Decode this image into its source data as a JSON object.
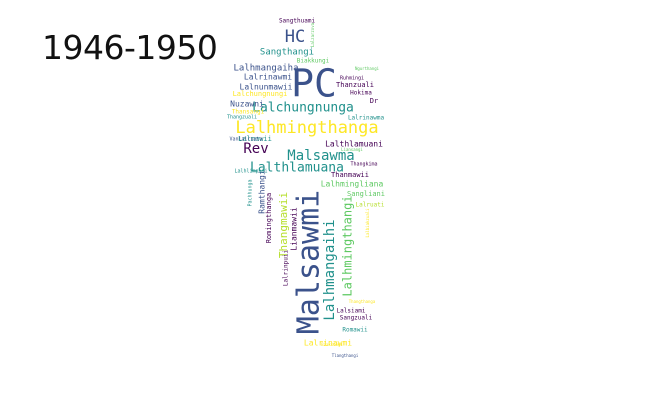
{
  "title": "1946-1950",
  "palette": {
    "dark_purple": "#440154",
    "indigo": "#3b528b",
    "teal": "#21918c",
    "green": "#5ec962",
    "yellow_green": "#b5de2b",
    "yellow": "#fde725"
  },
  "words": [
    {
      "text": "Malsawmi",
      "color": "#3b528b"
    },
    {
      "text": "PC",
      "color": "#3b528b"
    },
    {
      "text": "Lalhmingthanga",
      "color": "#fde725"
    },
    {
      "text": "Lalchungnunga",
      "color": "#21918c"
    },
    {
      "text": "Malsawma",
      "color": "#21918c"
    },
    {
      "text": "Lalthlamuana",
      "color": "#21918c"
    },
    {
      "text": "Lalhmangaihi",
      "color": "#21918c"
    },
    {
      "text": "Lalhmingthangi",
      "color": "#5ec962"
    },
    {
      "text": "HC",
      "color": "#3b528b"
    },
    {
      "text": "Rev",
      "color": "#440154"
    },
    {
      "text": "Thangmawii",
      "color": "#b5de2b"
    },
    {
      "text": "Sangthangi",
      "color": "#21918c"
    },
    {
      "text": "Lalhmangaiha",
      "color": "#3b528b"
    },
    {
      "text": "Lalrinawmi",
      "color": "#3b528b"
    },
    {
      "text": "Lalnunmawii",
      "color": "#3b528b"
    },
    {
      "text": "Lalhmingliana",
      "color": "#5ec962"
    },
    {
      "text": "Nuzawni",
      "color": "#3b528b"
    },
    {
      "text": "Lalthlamuani",
      "color": "#440154"
    },
    {
      "text": "Thanzuali",
      "color": "#440154"
    },
    {
      "text": "Hokima",
      "color": "#440154"
    },
    {
      "text": "Thanmawii",
      "color": "#440154"
    },
    {
      "text": "Sangliani",
      "color": "#5ec962"
    },
    {
      "text": "Lianmawii",
      "color": "#440154"
    },
    {
      "text": "Ramthangi",
      "color": "#3b528b"
    },
    {
      "text": "Romingthanga",
      "color": "#440154"
    },
    {
      "text": "Lalrinawmi",
      "color": "#fde725"
    },
    {
      "text": "Lalsiami",
      "color": "#440154"
    },
    {
      "text": "Sangzuali",
      "color": "#440154"
    },
    {
      "text": "Romawii",
      "color": "#21918c"
    },
    {
      "text": "Lalrinpuii",
      "color": "#440154"
    },
    {
      "text": "Lalmawii",
      "color": "#21918c"
    },
    {
      "text": "Thangkima",
      "color": "#440154"
    },
    {
      "text": "Sangthuami",
      "color": "#440154"
    },
    {
      "text": "Biakkungi",
      "color": "#5ec962"
    },
    {
      "text": "Lalrinawma",
      "color": "#21918c"
    },
    {
      "text": "Dr",
      "color": "#440154"
    },
    {
      "text": "Lalruati",
      "color": "#b5de2b"
    },
    {
      "text": "Thansangi",
      "color": "#fde725"
    },
    {
      "text": "Vanlalruata",
      "color": "#3b528b"
    },
    {
      "text": "Lalchungnungi",
      "color": "#fde725"
    },
    {
      "text": "Ruhmingi",
      "color": "#440154"
    },
    {
      "text": "Pachhunga",
      "color": "#21918c"
    },
    {
      "text": "Lalbiakzuali",
      "color": "#fde725"
    },
    {
      "text": "Lalzarzova",
      "color": "#5ec962"
    },
    {
      "text": "Ngurthangi",
      "color": "#5ec962"
    },
    {
      "text": "Biaksangi",
      "color": "#fde725"
    },
    {
      "text": "Thangthanga",
      "color": "#fde725"
    },
    {
      "text": "Thangzuali",
      "color": "#21918c"
    },
    {
      "text": "Lalhlimpuii",
      "color": "#21918c"
    },
    {
      "text": "Liansangi",
      "color": "#5ec962"
    },
    {
      "text": "Tlangthangi",
      "color": "#3b528b"
    }
  ]
}
